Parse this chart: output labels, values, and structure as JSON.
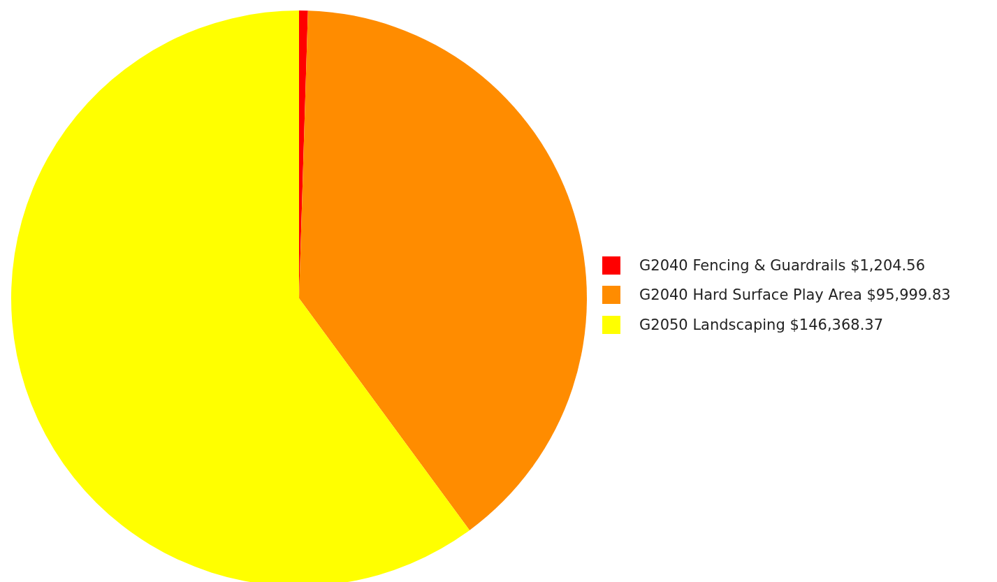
{
  "chart_data": {
    "type": "pie",
    "categories": [
      "G2040 Fencing & Guardrails",
      "G2040 Hard Surface Play Area",
      "G2050 Landscaping"
    ],
    "values": [
      1204.56,
      95999.83,
      146368.37
    ],
    "value_labels": [
      "$1,204.56",
      "$95,999.83",
      "$146,368.37"
    ],
    "colors": [
      "#ff0000",
      "#ff8c00",
      "#ffff00"
    ],
    "legend": "right"
  }
}
